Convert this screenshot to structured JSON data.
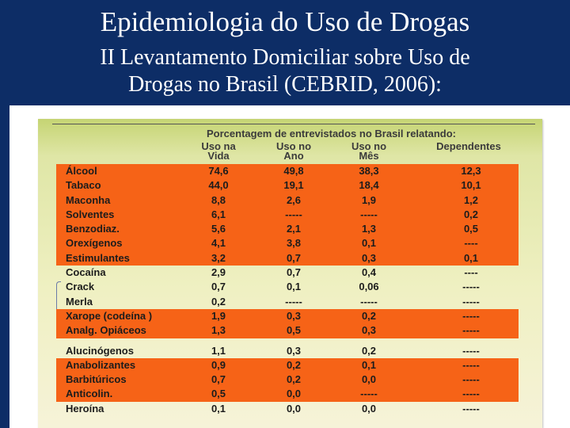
{
  "title": "Epidemiologia do Uso de Drogas",
  "subtitle_line1": "II Levantamento Domiciliar sobre Uso de",
  "subtitle_line2": "Drogas no Brasil (CEBRID, 2006):",
  "table": {
    "caption": "Porcentagem de entrevistados no Brasil relatando:",
    "columns": [
      {
        "line1": "Uso na",
        "line2": "Vida"
      },
      {
        "line1": "Uso no",
        "line2": "Ano"
      },
      {
        "line1": "Uso no",
        "line2": "Mês"
      },
      {
        "line1": "Dependentes",
        "line2": ""
      }
    ],
    "rows": [
      {
        "name": "Álcool",
        "vida": "74,6",
        "ano": "49,8",
        "mes": "38,3",
        "dep": "12,3"
      },
      {
        "name": "Tabaco",
        "vida": "44,0",
        "ano": "19,1",
        "mes": "18,4",
        "dep": "10,1"
      },
      {
        "name": "Maconha",
        "vida": "8,8",
        "ano": "2,6",
        "mes": "1,9",
        "dep": "1,2"
      },
      {
        "name": "Solventes",
        "vida": "6,1",
        "ano": "-----",
        "mes": "-----",
        "dep": "0,2"
      },
      {
        "name": "Benzodiaz.",
        "vida": "5,6",
        "ano": "2,1",
        "mes": "1,3",
        "dep": "0,5"
      },
      {
        "name": "Orexígenos",
        "vida": "4,1",
        "ano": "3,8",
        "mes": "0,1",
        "dep": "----"
      },
      {
        "name": "Estimulantes",
        "vida": "3,2",
        "ano": "0,7",
        "mes": "0,3",
        "dep": "0,1"
      },
      {
        "name": "Cocaína",
        "vida": "2,9",
        "ano": "0,7",
        "mes": "0,4",
        "dep": "----"
      },
      {
        "name": "Crack",
        "vida": "0,7",
        "ano": "0,1",
        "mes": "0,06",
        "dep": "-----"
      },
      {
        "name": "Merla",
        "vida": "0,2",
        "ano": "-----",
        "mes": "-----",
        "dep": "-----"
      },
      {
        "name": "Xarope (codeína )",
        "vida": "1,9",
        "ano": "0,3",
        "mes": "0,2",
        "dep": "-----"
      },
      {
        "name": "Analg. Opiáceos",
        "vida": "1,3",
        "ano": "0,5",
        "mes": "0,3",
        "dep": "-----"
      },
      {
        "name": "Alucinógenos",
        "vida": "1,1",
        "ano": "0,3",
        "mes": "0,2",
        "dep": "-----"
      },
      {
        "name": "Anabolizantes",
        "vida": "0,9",
        "ano": "0,2",
        "mes": "0,1",
        "dep": "-----"
      },
      {
        "name": "Barbitúricos",
        "vida": "0,7",
        "ano": "0,2",
        "mes": "0,0",
        "dep": "-----"
      },
      {
        "name": "Anticolin.",
        "vida": "0,5",
        "ano": "0,0",
        "mes": "-----",
        "dep": "-----"
      },
      {
        "name": "Heroína",
        "vida": "0,1",
        "ano": "0,0",
        "mes": "0,0",
        "dep": "-----"
      }
    ]
  },
  "colors": {
    "background": "#0d2d66",
    "highlight": "#f66317",
    "panel_top": "#c5d473",
    "panel_bottom": "#f6f3d8"
  }
}
